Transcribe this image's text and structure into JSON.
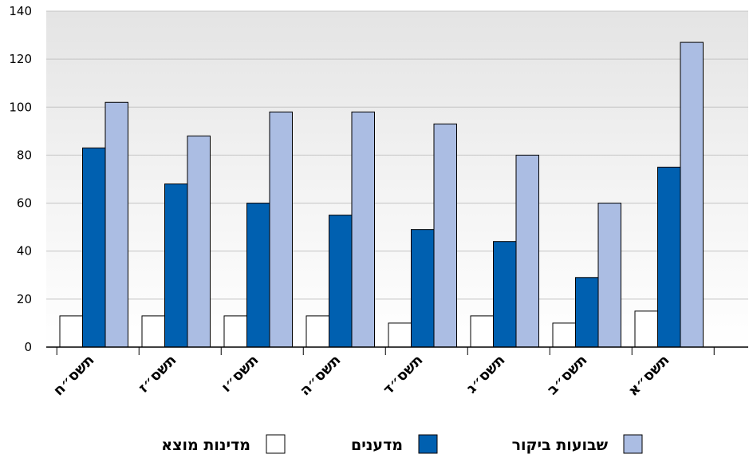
{
  "chart_data": {
    "type": "bar",
    "categories": [
      "תשס״א",
      "תשס״ב",
      "תשס״ג",
      "תשס״ד",
      "תשס״ה",
      "תשס״ו",
      "תשס״ז",
      "תשס״ח"
    ],
    "series": [
      {
        "name": "מדינות מוצא",
        "color": "#ffffff",
        "values": [
          15,
          10,
          13,
          10,
          13,
          13,
          13,
          13
        ]
      },
      {
        "name": "מדענים",
        "color": "#0060b0",
        "values": [
          75,
          29,
          44,
          49,
          55,
          60,
          68,
          83
        ]
      },
      {
        "name": "שבועות ביקור",
        "color": "#abbde3",
        "values": [
          127,
          60,
          80,
          93,
          98,
          98,
          88,
          102
        ]
      }
    ],
    "ylim": [
      0,
      140
    ],
    "yticks": [
      0,
      20,
      40,
      60,
      80,
      100,
      120,
      140
    ],
    "category_order": "right-to-left",
    "grid": true,
    "legend_position": "bottom"
  }
}
